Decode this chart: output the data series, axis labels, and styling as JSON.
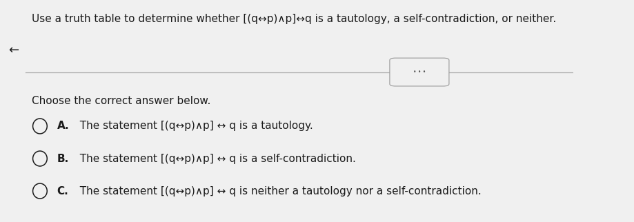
{
  "bg_color": "#f0f0f0",
  "title_text": "Use a truth table to determine whether [(q↔p)∧p]↔q is a tautology, a self-contradiction, or neither.",
  "prompt_text": "Choose the correct answer below.",
  "option_a_label": "A.",
  "option_a_text": "  The statement [(q↔p)∧p] ↔ q is a tautology.",
  "option_b_label": "B.",
  "option_b_text": "  The statement [(q↔p)∧p] ↔ q is a self-contradiction.",
  "option_c_label": "C.",
  "option_c_text": "  The statement [(q↔p)∧p] ↔ q is neither a tautology nor a self-contradiction.",
  "text_color": "#1a1a1a",
  "circle_color": "#1a1a1a",
  "line_color": "#aaaaaa",
  "dots_color": "#555555",
  "font_size_title": 11.0,
  "font_size_body": 11.0,
  "font_size_label": 11.0
}
